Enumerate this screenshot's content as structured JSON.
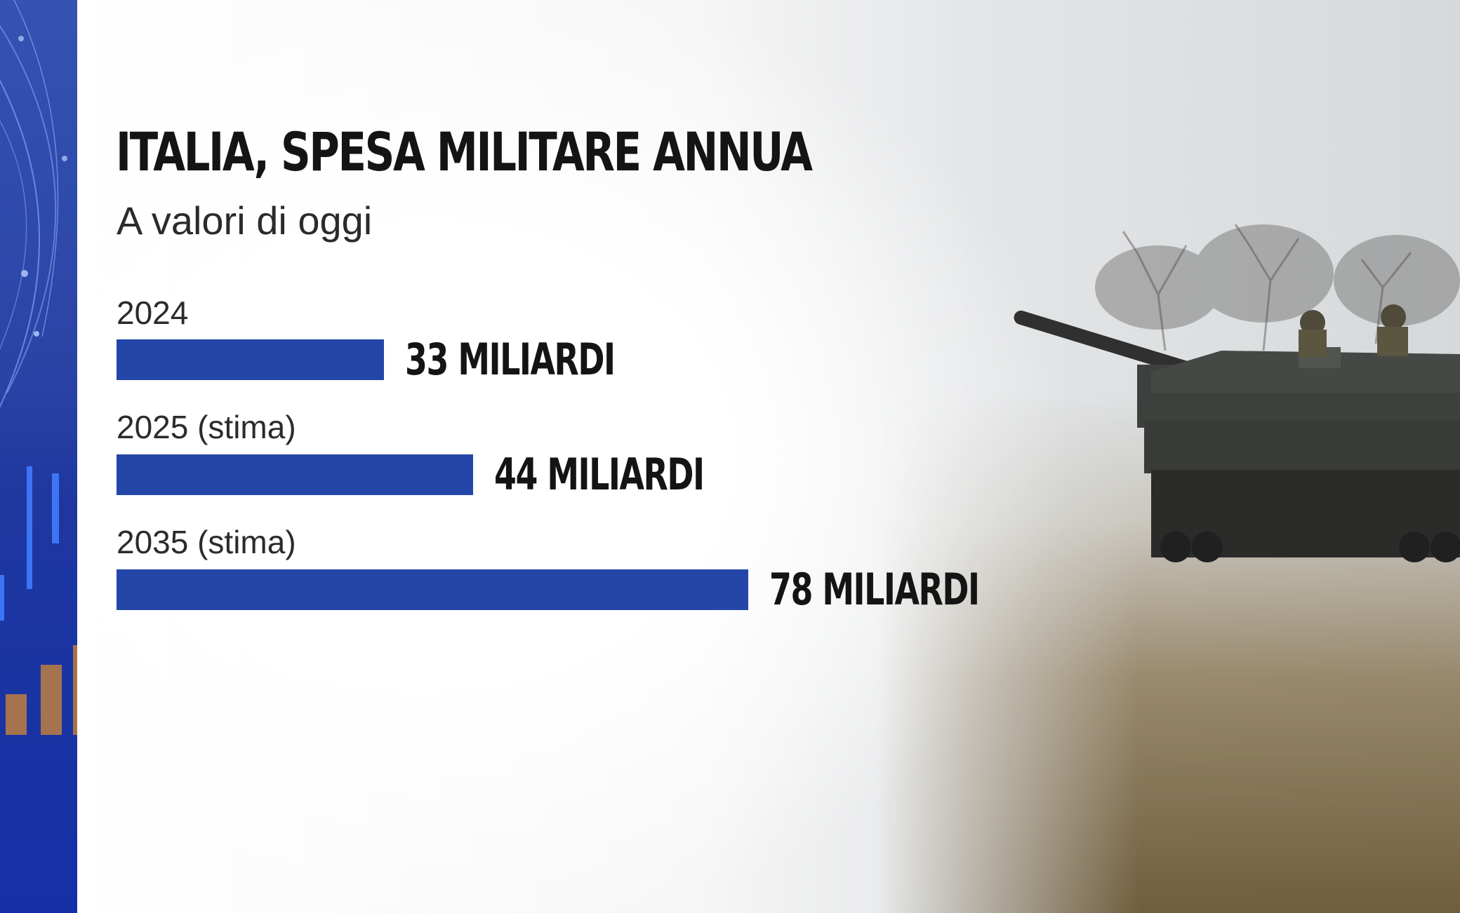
{
  "chart_data": {
    "type": "bar",
    "orientation": "horizontal",
    "title": "ITALIA, SPESA MILITARE ANNUA",
    "subtitle": "A valori di oggi",
    "categories": [
      "2024",
      "2025 (stima)",
      "2035 (stima)"
    ],
    "values": [
      33,
      44,
      78
    ],
    "value_labels": [
      "33 MILIARDI",
      "44 MILIARDI",
      "78 MILIARDI"
    ],
    "bar_color": "#2346a8",
    "grid": false
  },
  "colors": {
    "accent": "#2346a8",
    "text": "#141414",
    "side_panel": "#1e37a0"
  },
  "background": {
    "image": "military-tank-photo"
  }
}
